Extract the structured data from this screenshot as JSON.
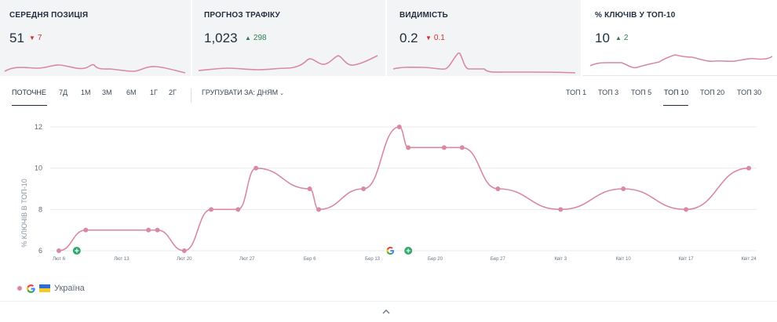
{
  "metrics": [
    {
      "title": "СЕРЕДНЯ ПОЗИЦІЯ",
      "value": "51",
      "delta": "7",
      "direction": "down"
    },
    {
      "title": "ПРОГНОЗ ТРАФІКУ",
      "value": "1,023",
      "delta": "298",
      "direction": "up"
    },
    {
      "title": "ВИДИМІСТЬ",
      "value": "0.2",
      "delta": "0.1",
      "direction": "down"
    },
    {
      "title": "% КЛЮЧІВ У ТОП-10",
      "value": "10",
      "delta": "2",
      "direction": "up"
    }
  ],
  "periods": [
    "ПОТОЧНЕ",
    "7Д",
    "1М",
    "3М",
    "6М",
    "1Г",
    "2Г"
  ],
  "active_period": "ПОТОЧНЕ",
  "group_by_label": "ГРУПУВАТИ ЗА: ДНЯМ",
  "top_filters": [
    "ТОП 1",
    "ТОП 3",
    "ТОП 5",
    "ТОП 10",
    "ТОП 20",
    "ТОП 30"
  ],
  "active_top": "ТОП 10",
  "legend": {
    "region": "Україна"
  },
  "colors": {
    "series": "#d98aa0",
    "event_marker": "#2faa6d",
    "accent": "#1f2d3d"
  },
  "icons": {
    "google": "google-icon",
    "flag": "ukraine-flag-icon",
    "collapse": "chevron-up-icon",
    "event": "plus-icon"
  },
  "chart_data": {
    "type": "line",
    "ylabel": "% КЛЮЧІВ В ТОП-10",
    "ylim": [
      6,
      12
    ],
    "yticks": [
      6,
      8,
      10,
      12
    ],
    "grid": true,
    "xticks": [
      "Лют 6",
      "Лют 13",
      "Лют 20",
      "Лют 27",
      "Бер 6",
      "Бер 13",
      "Бер 20",
      "Бер 27",
      "Квіт 3",
      "Квіт 10",
      "Квіт 17",
      "Квіт 24"
    ],
    "series": [
      {
        "points": [
          {
            "x": "Лют 6",
            "y": 6
          },
          {
            "x": "Лют 9",
            "y": 7
          },
          {
            "x": "Лют 16",
            "y": 7
          },
          {
            "x": "Лют 17",
            "y": 7
          },
          {
            "x": "Лют 20",
            "y": 6
          },
          {
            "x": "Лют 23",
            "y": 8
          },
          {
            "x": "Лют 26",
            "y": 8
          },
          {
            "x": "Лют 28",
            "y": 10
          },
          {
            "x": "Бер 6",
            "y": 9
          },
          {
            "x": "Бер 7",
            "y": 8
          },
          {
            "x": "Бер 12",
            "y": 9
          },
          {
            "x": "Бер 16",
            "y": 12
          },
          {
            "x": "Бер 17",
            "y": 11
          },
          {
            "x": "Бер 21",
            "y": 11
          },
          {
            "x": "Бер 23",
            "y": 11
          },
          {
            "x": "Бер 27",
            "y": 9
          },
          {
            "x": "Квіт 3",
            "y": 8
          },
          {
            "x": "Квіт 10",
            "y": 9
          },
          {
            "x": "Квіт 17",
            "y": 8
          },
          {
            "x": "Квіт 24",
            "y": 10
          }
        ]
      }
    ],
    "events": [
      {
        "x": "Лют 8",
        "type": "note"
      },
      {
        "x": "Бер 15",
        "type": "google-update"
      },
      {
        "x": "Бер 17",
        "type": "note"
      }
    ]
  }
}
